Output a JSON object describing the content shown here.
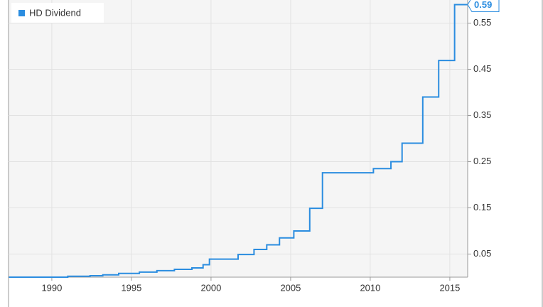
{
  "chart_data": {
    "type": "line",
    "x": [
      1987.3,
      1991.0,
      1991.0,
      1992.4,
      1992.4,
      1993.2,
      1993.2,
      1994.2,
      1994.2,
      1995.5,
      1995.5,
      1996.6,
      1996.6,
      1997.7,
      1997.7,
      1998.8,
      1998.8,
      1999.5,
      1999.5,
      1999.9,
      1999.9,
      2001.7,
      2001.7,
      2002.7,
      2002.7,
      2003.5,
      2003.5,
      2004.3,
      2004.3,
      2005.2,
      2005.2,
      2006.2,
      2006.2,
      2007.0,
      2007.0,
      2010.2,
      2010.2,
      2011.3,
      2011.3,
      2012.0,
      2012.0,
      2013.3,
      2013.3,
      2014.3,
      2014.3,
      2015.3,
      2015.3,
      2016.1
    ],
    "series": [
      {
        "name": "HD Dividend",
        "color": "#2b8de0",
        "values": [
          0,
          0,
          0.002,
          0.002,
          0.003,
          0.003,
          0.005,
          0.005,
          0.008,
          0.008,
          0.011,
          0.011,
          0.014,
          0.014,
          0.017,
          0.017,
          0.02,
          0.02,
          0.027,
          0.027,
          0.039,
          0.039,
          0.049,
          0.049,
          0.06,
          0.06,
          0.07,
          0.07,
          0.085,
          0.085,
          0.1,
          0.1,
          0.149,
          0.149,
          0.226,
          0.226,
          0.235,
          0.235,
          0.25,
          0.25,
          0.29,
          0.29,
          0.39,
          0.39,
          0.469,
          0.469,
          0.59,
          0.59
        ]
      }
    ],
    "xlim": [
      1987.28,
      2016.12
    ],
    "xticks": [
      1990,
      1995,
      2000,
      2005,
      2010,
      2015
    ],
    "ylim": [
      0,
      0.6
    ],
    "yticks": [
      0.05,
      0.15,
      0.25,
      0.35,
      0.45,
      0.55
    ],
    "grid": true,
    "legend": "top-left"
  }
}
